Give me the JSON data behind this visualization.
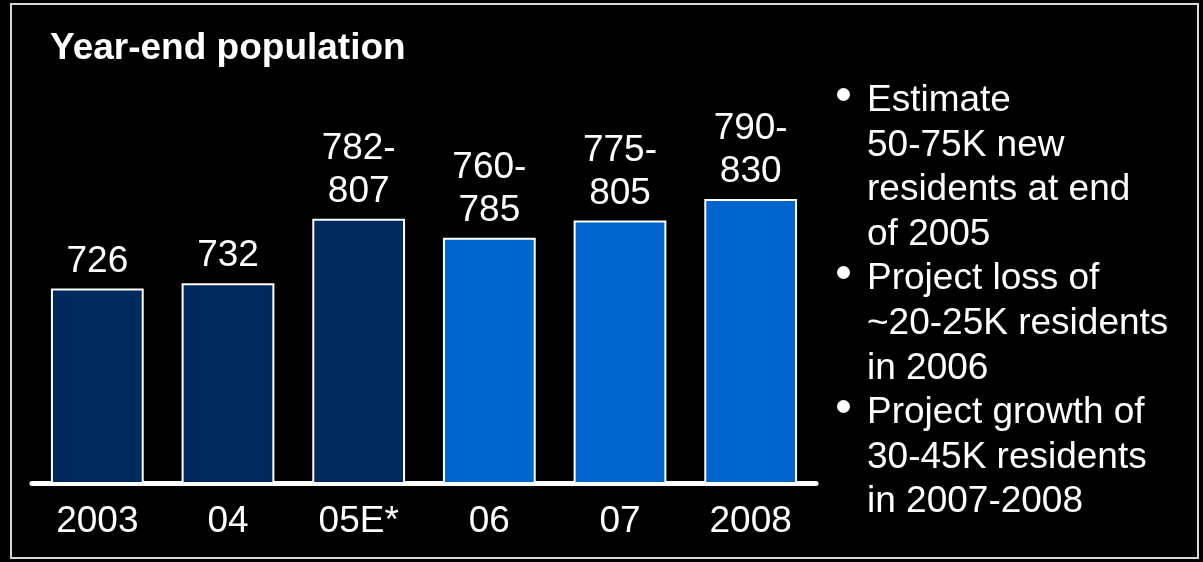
{
  "chart_data": {
    "type": "bar",
    "title": "Year-end population",
    "categories": [
      "2003",
      "04",
      "05E*",
      "06",
      "07",
      "2008"
    ],
    "values": [
      726,
      732,
      807,
      785,
      805,
      830
    ],
    "value_labels": [
      "726",
      "732",
      "782-\n807",
      "760-\n785",
      "775-\n805",
      "790-\n830"
    ],
    "colors": [
      "#00295e",
      "#00295e",
      "#00295e",
      "#0065cc",
      "#0065cc",
      "#0065cc"
    ],
    "ylim": [
      500,
      830
    ],
    "tick_labels": "x",
    "annotations": [
      "Estimate\n50-75K new\nresidents at end\nof 2005",
      "Project loss of\n~20-25K residents\nin 2006",
      "Project growth of\n30-45K residents\nin 2007-2008"
    ]
  }
}
